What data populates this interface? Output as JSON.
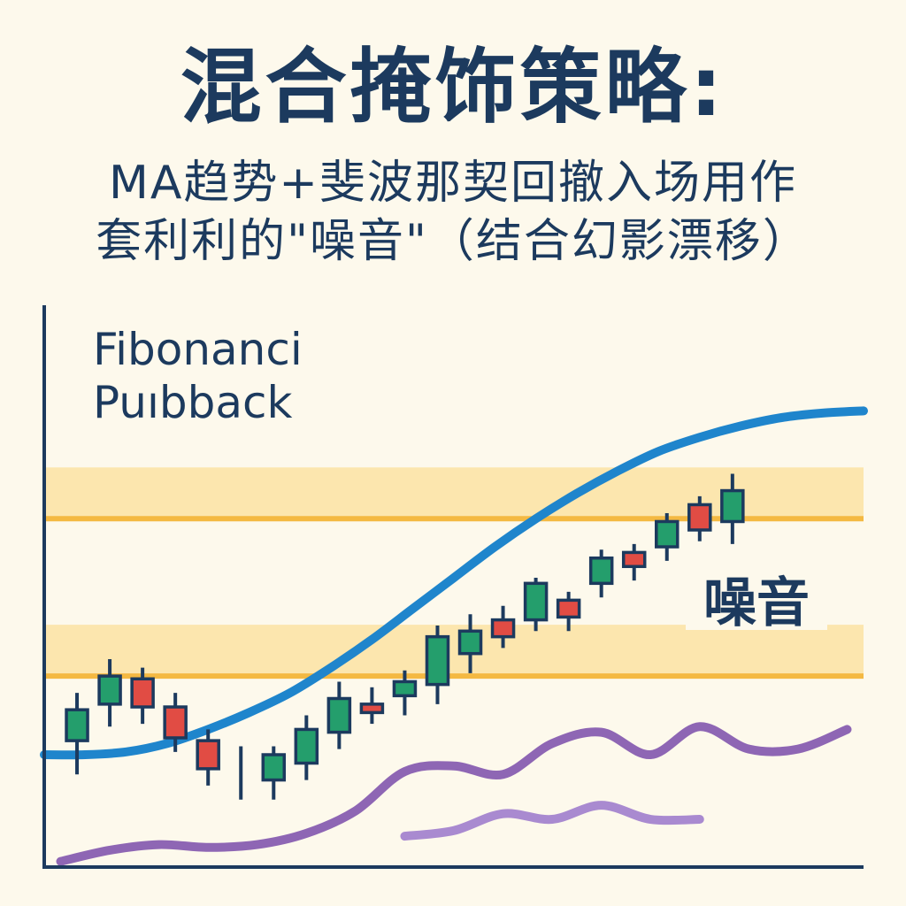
{
  "title": "混合掩饰策略:",
  "subtitle_line1": "MA趋势+斐波那契回撤入场用作",
  "subtitle_line2": "套利利的\"噪音\"（结合幻影漂移）",
  "colors": {
    "background": "#fdf9ec",
    "text": "#1c3a5e",
    "ma_line": "#1f85cc",
    "fib_band": "#fbe3a3",
    "fib_line": "#f4b942",
    "bull_candle": "#249e6c",
    "bear_candle": "#e14c44",
    "wick": "#1c3a5e",
    "noise_dark": "#8e66b4",
    "noise_light": "#a98ad0"
  },
  "chart_data": {
    "type": "candlestick",
    "annotations": {
      "fib_label_line1": "Fibonanci",
      "fib_label_line2": "Puıbback",
      "noise_label": "噪音"
    },
    "fib_levels": [
      620,
      340
    ],
    "ma_trend": {
      "x": [
        0,
        5,
        10,
        15,
        20,
        25,
        30,
        35,
        40,
        45,
        50,
        55,
        60,
        65,
        70,
        75,
        80,
        85,
        90,
        95,
        100
      ],
      "y": [
        200,
        200,
        205,
        220,
        245,
        275,
        310,
        355,
        405,
        460,
        515,
        570,
        620,
        665,
        705,
        740,
        765,
        785,
        800,
        808,
        812
      ]
    },
    "candles": [
      {
        "x": 4,
        "open": 225,
        "close": 280,
        "high": 310,
        "low": 165
      },
      {
        "x": 8,
        "open": 290,
        "close": 340,
        "high": 370,
        "low": 250
      },
      {
        "x": 12,
        "open": 335,
        "close": 285,
        "high": 355,
        "low": 255
      },
      {
        "x": 16,
        "open": 285,
        "close": 230,
        "high": 310,
        "low": 205
      },
      {
        "x": 20,
        "open": 225,
        "close": 175,
        "high": 245,
        "low": 145
      },
      {
        "x": 24,
        "open": 180,
        "close": 180,
        "high": 215,
        "low": 120
      },
      {
        "x": 28,
        "open": 155,
        "close": 200,
        "high": 215,
        "low": 120
      },
      {
        "x": 32,
        "open": 185,
        "close": 245,
        "high": 270,
        "low": 155
      },
      {
        "x": 36,
        "open": 240,
        "close": 300,
        "high": 330,
        "low": 210
      },
      {
        "x": 40,
        "open": 290,
        "close": 275,
        "high": 320,
        "low": 255
      },
      {
        "x": 44,
        "open": 305,
        "close": 330,
        "high": 350,
        "low": 270
      },
      {
        "x": 48,
        "open": 325,
        "close": 410,
        "high": 430,
        "low": 290
      },
      {
        "x": 52,
        "open": 380,
        "close": 420,
        "high": 450,
        "low": 345
      },
      {
        "x": 56,
        "open": 440,
        "close": 410,
        "high": 465,
        "low": 390
      },
      {
        "x": 60,
        "open": 440,
        "close": 505,
        "high": 515,
        "low": 420
      },
      {
        "x": 64,
        "open": 475,
        "close": 445,
        "high": 490,
        "low": 420
      },
      {
        "x": 68,
        "open": 505,
        "close": 550,
        "high": 565,
        "low": 480
      },
      {
        "x": 72,
        "open": 560,
        "close": 535,
        "high": 575,
        "low": 510
      },
      {
        "x": 76,
        "open": 570,
        "close": 615,
        "high": 630,
        "low": 545
      },
      {
        "x": 80,
        "open": 645,
        "close": 600,
        "high": 660,
        "low": 580
      },
      {
        "x": 84,
        "open": 615,
        "close": 670,
        "high": 700,
        "low": 575
      }
    ],
    "noise_series": [
      {
        "x": [
          2,
          8,
          14,
          20,
          26,
          32,
          38,
          44,
          50,
          56,
          62,
          68,
          74,
          80,
          86,
          92,
          98
        ],
        "y": [
          10,
          30,
          40,
          35,
          40,
          60,
          100,
          170,
          180,
          165,
          220,
          240,
          200,
          250,
          210,
          210,
          245
        ]
      },
      {
        "x": [
          44,
          50,
          56,
          62,
          68,
          74,
          80
        ],
        "y": [
          55,
          65,
          95,
          85,
          110,
          85,
          85
        ]
      }
    ]
  }
}
